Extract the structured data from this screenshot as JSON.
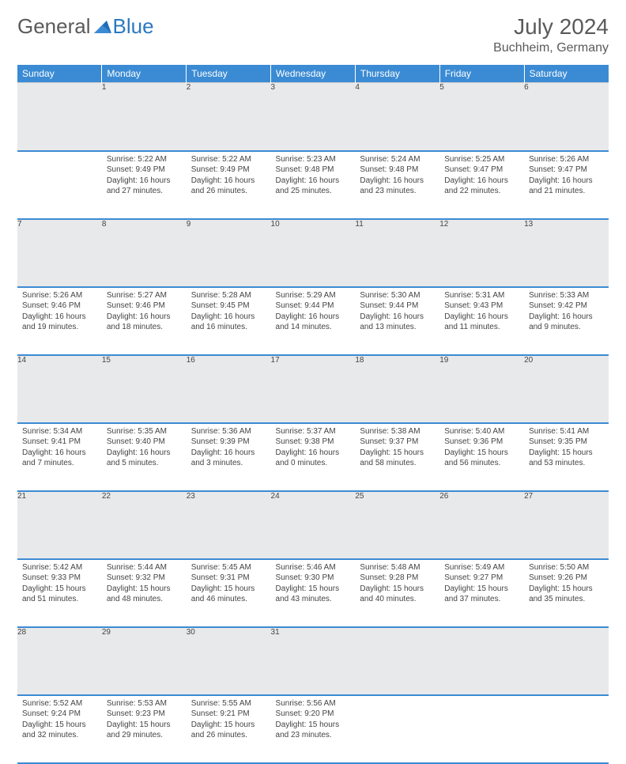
{
  "brand": {
    "general": "General",
    "blue": "Blue"
  },
  "title": "July 2024",
  "location": "Buchheim, Germany",
  "colors": {
    "header_bg": "#3b8bd4",
    "header_text": "#ffffff",
    "daynum_bg": "#e8e9ea",
    "divider": "#3b8bd4",
    "text": "#444444",
    "logo_gray": "#5a5a5a",
    "logo_blue": "#2b78c2"
  },
  "weekdays": [
    "Sunday",
    "Monday",
    "Tuesday",
    "Wednesday",
    "Thursday",
    "Friday",
    "Saturday"
  ],
  "weeks": [
    [
      {
        "n": "",
        "sunrise": "",
        "sunset": "",
        "daylight": ""
      },
      {
        "n": "1",
        "sunrise": "5:22 AM",
        "sunset": "9:49 PM",
        "daylight": "16 hours and 27 minutes."
      },
      {
        "n": "2",
        "sunrise": "5:22 AM",
        "sunset": "9:49 PM",
        "daylight": "16 hours and 26 minutes."
      },
      {
        "n": "3",
        "sunrise": "5:23 AM",
        "sunset": "9:48 PM",
        "daylight": "16 hours and 25 minutes."
      },
      {
        "n": "4",
        "sunrise": "5:24 AM",
        "sunset": "9:48 PM",
        "daylight": "16 hours and 23 minutes."
      },
      {
        "n": "5",
        "sunrise": "5:25 AM",
        "sunset": "9:47 PM",
        "daylight": "16 hours and 22 minutes."
      },
      {
        "n": "6",
        "sunrise": "5:26 AM",
        "sunset": "9:47 PM",
        "daylight": "16 hours and 21 minutes."
      }
    ],
    [
      {
        "n": "7",
        "sunrise": "5:26 AM",
        "sunset": "9:46 PM",
        "daylight": "16 hours and 19 minutes."
      },
      {
        "n": "8",
        "sunrise": "5:27 AM",
        "sunset": "9:46 PM",
        "daylight": "16 hours and 18 minutes."
      },
      {
        "n": "9",
        "sunrise": "5:28 AM",
        "sunset": "9:45 PM",
        "daylight": "16 hours and 16 minutes."
      },
      {
        "n": "10",
        "sunrise": "5:29 AM",
        "sunset": "9:44 PM",
        "daylight": "16 hours and 14 minutes."
      },
      {
        "n": "11",
        "sunrise": "5:30 AM",
        "sunset": "9:44 PM",
        "daylight": "16 hours and 13 minutes."
      },
      {
        "n": "12",
        "sunrise": "5:31 AM",
        "sunset": "9:43 PM",
        "daylight": "16 hours and 11 minutes."
      },
      {
        "n": "13",
        "sunrise": "5:33 AM",
        "sunset": "9:42 PM",
        "daylight": "16 hours and 9 minutes."
      }
    ],
    [
      {
        "n": "14",
        "sunrise": "5:34 AM",
        "sunset": "9:41 PM",
        "daylight": "16 hours and 7 minutes."
      },
      {
        "n": "15",
        "sunrise": "5:35 AM",
        "sunset": "9:40 PM",
        "daylight": "16 hours and 5 minutes."
      },
      {
        "n": "16",
        "sunrise": "5:36 AM",
        "sunset": "9:39 PM",
        "daylight": "16 hours and 3 minutes."
      },
      {
        "n": "17",
        "sunrise": "5:37 AM",
        "sunset": "9:38 PM",
        "daylight": "16 hours and 0 minutes."
      },
      {
        "n": "18",
        "sunrise": "5:38 AM",
        "sunset": "9:37 PM",
        "daylight": "15 hours and 58 minutes."
      },
      {
        "n": "19",
        "sunrise": "5:40 AM",
        "sunset": "9:36 PM",
        "daylight": "15 hours and 56 minutes."
      },
      {
        "n": "20",
        "sunrise": "5:41 AM",
        "sunset": "9:35 PM",
        "daylight": "15 hours and 53 minutes."
      }
    ],
    [
      {
        "n": "21",
        "sunrise": "5:42 AM",
        "sunset": "9:33 PM",
        "daylight": "15 hours and 51 minutes."
      },
      {
        "n": "22",
        "sunrise": "5:44 AM",
        "sunset": "9:32 PM",
        "daylight": "15 hours and 48 minutes."
      },
      {
        "n": "23",
        "sunrise": "5:45 AM",
        "sunset": "9:31 PM",
        "daylight": "15 hours and 46 minutes."
      },
      {
        "n": "24",
        "sunrise": "5:46 AM",
        "sunset": "9:30 PM",
        "daylight": "15 hours and 43 minutes."
      },
      {
        "n": "25",
        "sunrise": "5:48 AM",
        "sunset": "9:28 PM",
        "daylight": "15 hours and 40 minutes."
      },
      {
        "n": "26",
        "sunrise": "5:49 AM",
        "sunset": "9:27 PM",
        "daylight": "15 hours and 37 minutes."
      },
      {
        "n": "27",
        "sunrise": "5:50 AM",
        "sunset": "9:26 PM",
        "daylight": "15 hours and 35 minutes."
      }
    ],
    [
      {
        "n": "28",
        "sunrise": "5:52 AM",
        "sunset": "9:24 PM",
        "daylight": "15 hours and 32 minutes."
      },
      {
        "n": "29",
        "sunrise": "5:53 AM",
        "sunset": "9:23 PM",
        "daylight": "15 hours and 29 minutes."
      },
      {
        "n": "30",
        "sunrise": "5:55 AM",
        "sunset": "9:21 PM",
        "daylight": "15 hours and 26 minutes."
      },
      {
        "n": "31",
        "sunrise": "5:56 AM",
        "sunset": "9:20 PM",
        "daylight": "15 hours and 23 minutes."
      },
      {
        "n": "",
        "sunrise": "",
        "sunset": "",
        "daylight": ""
      },
      {
        "n": "",
        "sunrise": "",
        "sunset": "",
        "daylight": ""
      },
      {
        "n": "",
        "sunrise": "",
        "sunset": "",
        "daylight": ""
      }
    ]
  ],
  "labels": {
    "sunrise": "Sunrise:",
    "sunset": "Sunset:",
    "daylight": "Daylight:"
  }
}
